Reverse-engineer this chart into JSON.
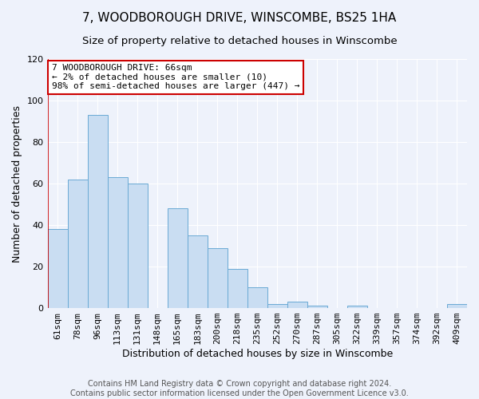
{
  "title": "7, WOODBOROUGH DRIVE, WINSCOMBE, BS25 1HA",
  "subtitle": "Size of property relative to detached houses in Winscombe",
  "xlabel": "Distribution of detached houses by size in Winscombe",
  "ylabel": "Number of detached properties",
  "bar_labels": [
    "61sqm",
    "78sqm",
    "96sqm",
    "113sqm",
    "131sqm",
    "148sqm",
    "165sqm",
    "183sqm",
    "200sqm",
    "218sqm",
    "235sqm",
    "252sqm",
    "270sqm",
    "287sqm",
    "305sqm",
    "322sqm",
    "339sqm",
    "357sqm",
    "374sqm",
    "392sqm",
    "409sqm"
  ],
  "bar_values": [
    38,
    62,
    93,
    63,
    60,
    0,
    48,
    35,
    29,
    19,
    10,
    2,
    3,
    1,
    0,
    1,
    0,
    0,
    0,
    0,
    2
  ],
  "bar_color": "#c9ddf2",
  "bar_edge_color": "#6aaad4",
  "ylim": [
    0,
    120
  ],
  "yticks": [
    0,
    20,
    40,
    60,
    80,
    100,
    120
  ],
  "annotation_box_title": "7 WOODBOROUGH DRIVE: 66sqm",
  "annotation_line1": "← 2% of detached houses are smaller (10)",
  "annotation_line2": "98% of semi-detached houses are larger (447) →",
  "annotation_box_color": "#ffffff",
  "annotation_box_edge_color": "#cc0000",
  "footer_line1": "Contains HM Land Registry data © Crown copyright and database right 2024.",
  "footer_line2": "Contains public sector information licensed under the Open Government Licence v3.0.",
  "background_color": "#eef2fb",
  "grid_color": "#ffffff",
  "title_fontsize": 11,
  "subtitle_fontsize": 9.5,
  "axis_label_fontsize": 9,
  "tick_fontsize": 8,
  "footer_fontsize": 7,
  "annotation_fontsize": 8
}
